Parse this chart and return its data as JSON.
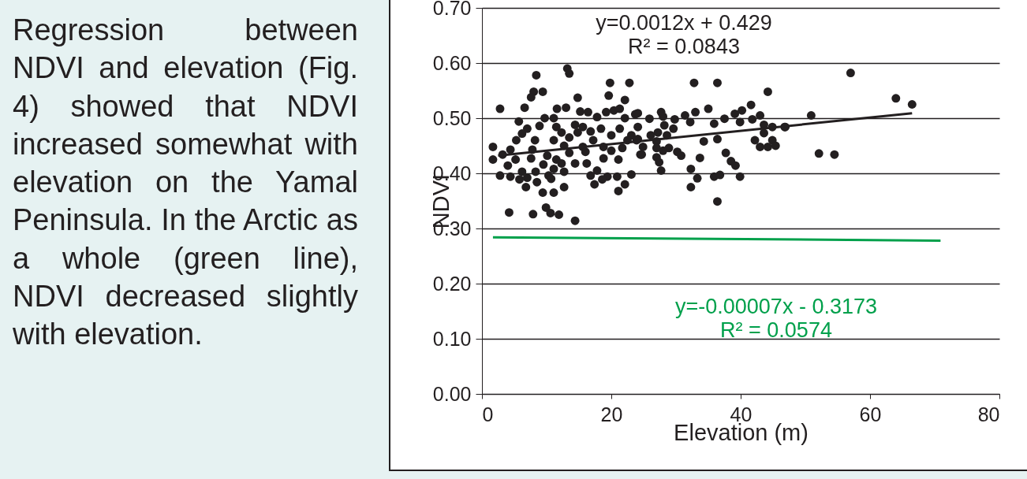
{
  "chart_data": {
    "type": "scatter",
    "xlabel": "Elevation (m)",
    "ylabel": "NDVI",
    "xlim": [
      0,
      80
    ],
    "xticks": [
      0,
      20,
      40,
      60,
      80
    ],
    "ylim": [
      0,
      0.7
    ],
    "yticks": [
      {
        "value": 0,
        "label": "0.00"
      },
      {
        "value": 0.1,
        "label": "0.10"
      },
      {
        "value": 0.2,
        "label": "0.20"
      },
      {
        "value": 0.3,
        "label": "0.30"
      },
      {
        "value": 0.4,
        "label": "0.40"
      },
      {
        "value": 0.5,
        "label": "0.50"
      },
      {
        "value": 0.6,
        "label": "0.60"
      },
      {
        "value": 0.7,
        "label": "0.70"
      }
    ],
    "grid": "y",
    "annotations": [
      "Regression between NDVI and elevation (Fig. 4) showed that NDVI increased somewhat with elevation on the Yamal Peninsula. In the Arctic as a whole (green line), NDVI decreased slightly with elevation.",
      "y=0.0012x + 0.429",
      "R² = 0.0843",
      "y=-0.00007x - 0.3173",
      "R² = 0.0574"
    ],
    "series": [
      {
        "color": "#231f20",
        "x": [
          13.2,
          13.5,
          8.4,
          19.8,
          22.8,
          8.0,
          9.4,
          7.6,
          19.6,
          14.8,
          22.1,
          2.8,
          6.6,
          11.6,
          13.0,
          15.2,
          16.4,
          19.2,
          20.4,
          21.3,
          23.7,
          9.7,
          11.1,
          5.7,
          17.8,
          22.1,
          7.0,
          8.9,
          11.5,
          14.4,
          15.6,
          18.4,
          21.3,
          6.2,
          12.3,
          14.8,
          16.8,
          20.0,
          23.1,
          5.3,
          8.2,
          11.1,
          13.5,
          17.2,
          22.5,
          23.9,
          1.7,
          12.7,
          15.6,
          18.8,
          21.7,
          7.8,
          4.4,
          3.2,
          10.1,
          13.5,
          16.0,
          20.0,
          24.5,
          1.7,
          5.2,
          7.6,
          11.5,
          14.4,
          18.8,
          21.1,
          4.0,
          9.5,
          12.3,
          16.2,
          2.8,
          6.2,
          8.3,
          11.1,
          12.7,
          17.8,
          4.4,
          7.0,
          10.3,
          16.8,
          5.8,
          8.5,
          19.4,
          20.9,
          23.1,
          10.7,
          6.8,
          17.4,
          18.6,
          22.1,
          9.4,
          11.1,
          12.7,
          21.1,
          4.2,
          7.9,
          9.9,
          10.6,
          11.9,
          14.4,
          32.8,
          36.4,
          44.2,
          41.6,
          35.0,
          33.0,
          40.2,
          24.1,
          27.7,
          31.4,
          39.1,
          25.9,
          29.8,
          37.5,
          41.8,
          43.0,
          28.0,
          32.2,
          35.9,
          39.9,
          28.2,
          43.6,
          44.9,
          46.8,
          24.1,
          29.6,
          27.2,
          43.6,
          26.1,
          28.6,
          24.1,
          34.3,
          36.4,
          42.2,
          44.9,
          27.0,
          24.9,
          28.9,
          43.0,
          44.2,
          45.4,
          27.0,
          30.2,
          28.0,
          24.7,
          37.7,
          30.8,
          33.7,
          27.0,
          38.5,
          27.4,
          39.2,
          32.3,
          27.7,
          33.3,
          35.9,
          36.8,
          39.9,
          32.3,
          36.4,
          57.0,
          64.0,
          66.5,
          50.9,
          46.9,
          52.1,
          54.5
        ],
        "values": [
          0.59,
          0.581,
          0.578,
          0.564,
          0.564,
          0.548,
          0.548,
          0.538,
          0.541,
          0.537,
          0.533,
          0.517,
          0.519,
          0.517,
          0.519,
          0.512,
          0.511,
          0.511,
          0.514,
          0.517,
          0.507,
          0.5,
          0.5,
          0.494,
          0.502,
          0.5,
          0.481,
          0.486,
          0.484,
          0.488,
          0.484,
          0.481,
          0.481,
          0.472,
          0.474,
          0.474,
          0.476,
          0.469,
          0.469,
          0.46,
          0.46,
          0.46,
          0.465,
          0.46,
          0.46,
          0.46,
          0.448,
          0.45,
          0.448,
          0.448,
          0.446,
          0.443,
          0.443,
          0.434,
          0.432,
          0.437,
          0.439,
          0.441,
          0.434,
          0.425,
          0.425,
          0.427,
          0.425,
          0.418,
          0.427,
          0.425,
          0.414,
          0.416,
          0.418,
          0.418,
          0.396,
          0.403,
          0.403,
          0.408,
          0.403,
          0.405,
          0.394,
          0.392,
          0.396,
          0.396,
          0.389,
          0.384,
          0.394,
          0.394,
          0.398,
          0.39,
          0.375,
          0.38,
          0.389,
          0.38,
          0.365,
          0.365,
          0.375,
          0.368,
          0.329,
          0.326,
          0.338,
          0.328,
          0.325,
          0.314,
          0.564,
          0.564,
          0.548,
          0.524,
          0.517,
          0.511,
          0.514,
          0.509,
          0.511,
          0.505,
          0.508,
          0.499,
          0.498,
          0.499,
          0.498,
          0.505,
          0.503,
          0.493,
          0.49,
          0.493,
          0.487,
          0.488,
          0.484,
          0.484,
          0.484,
          0.481,
          0.474,
          0.473,
          0.469,
          0.469,
          0.462,
          0.458,
          0.462,
          0.46,
          0.46,
          0.458,
          0.448,
          0.446,
          0.448,
          0.448,
          0.45,
          0.446,
          0.439,
          0.441,
          0.434,
          0.437,
          0.432,
          0.428,
          0.429,
          0.422,
          0.42,
          0.414,
          0.408,
          0.405,
          0.391,
          0.394,
          0.397,
          0.394,
          0.375,
          0.349,
          0.582,
          0.536,
          0.525,
          0.505,
          0.484,
          0.436,
          0.434
        ]
      },
      {
        "type": "line",
        "color": "#231f20",
        "x": [
          2.5,
          66.5
        ],
        "values": [
          0.432,
          0.509
        ]
      },
      {
        "type": "line",
        "color": "#00a04b",
        "x": [
          1.7,
          70.9
        ],
        "values": [
          0.284,
          0.278
        ]
      }
    ]
  }
}
